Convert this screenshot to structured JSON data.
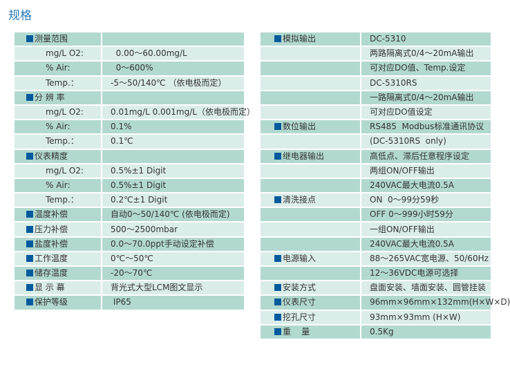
{
  "title": "规格",
  "left": [
    {
      "type": "h",
      "label": "测量范围",
      "value": ""
    },
    {
      "type": "s",
      "label": "mg/L O2:",
      "value": "  0.00～60.00mg/L"
    },
    {
      "type": "s",
      "label": "% Air:",
      "value": "  0～600%"
    },
    {
      "type": "s",
      "label": "Temp.：",
      "value": "-5～50/140℃ （依电极而定）"
    },
    {
      "type": "h",
      "label": "分 辨 率",
      "value": ""
    },
    {
      "type": "s",
      "label": "mg/L O2:",
      "value": "0.01mg/L 0.001mg/L（依电极而定）"
    },
    {
      "type": "s",
      "label": "% Air:",
      "value": "0.1%"
    },
    {
      "type": "s",
      "label": "Temp.：",
      "value": "0.1℃"
    },
    {
      "type": "h",
      "label": "仪表精度",
      "value": ""
    },
    {
      "type": "s",
      "label": "mg/L O2:",
      "value": "0.5%±1 Digit"
    },
    {
      "type": "s",
      "label": "% Air:",
      "value": "0.5%±1 Digit"
    },
    {
      "type": "s",
      "label": "Temp.：",
      "value": "0.2℃±1 Digit"
    },
    {
      "type": "h",
      "label": "温度补偿",
      "value": "自动0～50/140℃ (依电极而定)"
    },
    {
      "type": "h",
      "label": "压力补偿",
      "value": "500～2500mbar"
    },
    {
      "type": "h",
      "label": "盐度补偿",
      "value": "0.0～70.0ppt手动设定补偿"
    },
    {
      "type": "h",
      "label": "工作温度",
      "value": "0℃～50℃"
    },
    {
      "type": "h",
      "label": "储存温度",
      "value": "-20～70℃"
    },
    {
      "type": "h",
      "label": "显 示 幕",
      "value": "背光式大型LCM图文显示"
    },
    {
      "type": "h",
      "label": "保护等级",
      "value": " IP65"
    }
  ],
  "right": [
    {
      "type": "h",
      "label": "模拟输出",
      "value": "DC-5310"
    },
    {
      "type": "e",
      "label": "",
      "value": "两路隔离式0/4～20mA输出"
    },
    {
      "type": "e",
      "label": "",
      "value": "可对应DO值、Temp.设定"
    },
    {
      "type": "e",
      "label": "",
      "value": "DC-5310RS"
    },
    {
      "type": "e",
      "label": "",
      "value": "一路隔离式0/4～20mA输出"
    },
    {
      "type": "e",
      "label": "",
      "value": "可对应DO值设定"
    },
    {
      "type": "h",
      "label": "数位输出",
      "value": "RS485  Modbus标准通讯协议"
    },
    {
      "type": "e",
      "label": "",
      "value": "(DC-5310RS  only)"
    },
    {
      "type": "h",
      "label": "继电器输出",
      "value": "高低点、滞后任意程序设定"
    },
    {
      "type": "e",
      "label": "",
      "value": "两组ON/OFF输出"
    },
    {
      "type": "e",
      "label": "",
      "value": "240VAC最大电流0.5A"
    },
    {
      "type": "h",
      "label": "清洗接点",
      "value": "ON  0～99分59秒"
    },
    {
      "type": "e",
      "label": "",
      "value": "OFF 0～999小时59分"
    },
    {
      "type": "e",
      "label": "",
      "value": "一组ON/OFF输出"
    },
    {
      "type": "e",
      "label": "",
      "value": "240VAC最大电流0.5A"
    },
    {
      "type": "h",
      "label": "电源输入",
      "value": "88～265VAC宽电源、50/60Hz"
    },
    {
      "type": "e",
      "label": "",
      "value": "12～36VDC电源可选择"
    },
    {
      "type": "h",
      "label": "安装方式",
      "value": "盘面安装、墙面安装、圆管挂装"
    },
    {
      "type": "h",
      "label": "仪表尺寸",
      "value": "96mm×96mm×132mm(H×W×D)"
    },
    {
      "type": "h",
      "label": "挖孔尺寸",
      "value": "93mm×93mm (H×W)"
    },
    {
      "type": "h",
      "label": "重    量",
      "value": "0.5Kg"
    }
  ]
}
